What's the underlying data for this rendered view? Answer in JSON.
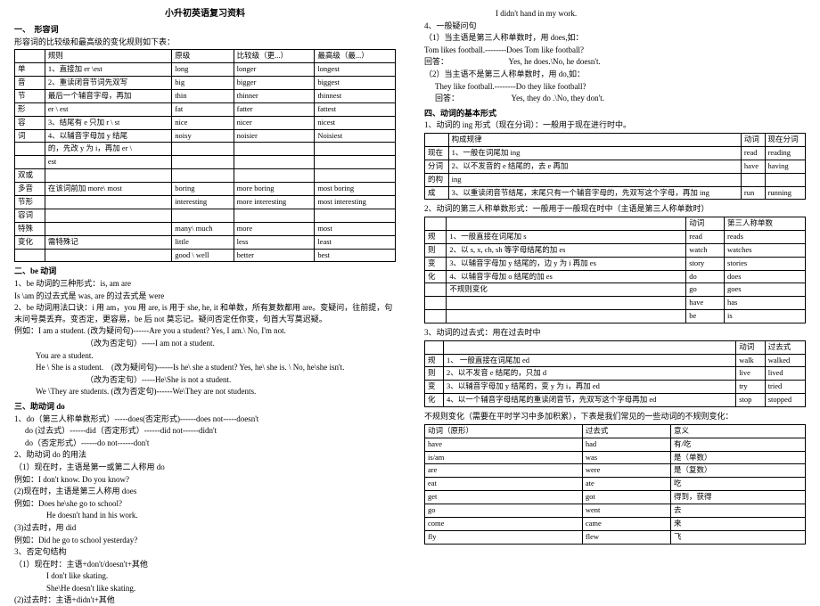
{
  "title": "小升初英语复习资料",
  "left": {
    "s1": {
      "h": "一、　形容词",
      "sub": "形容词的比较级和最高级的变化规则如下表：",
      "th": [
        "",
        "规则",
        "原级",
        "比较级（更...）",
        "最高级（最...）"
      ],
      "rows": [
        [
          "单",
          "1、直接加 er \\est",
          "long",
          "longer",
          "longest"
        ],
        [
          "音",
          "2、重读闭音节词先双写",
          "big",
          "bigger",
          "biggest"
        ],
        [
          "节",
          "最后一个辅音字母，再加",
          "thin",
          "thinner",
          "thinnest"
        ],
        [
          "形",
          "er \\ est",
          "fat",
          "fatter",
          "fattest"
        ],
        [
          "容",
          "3、结尾有 e 只加 r \\ st",
          "nice",
          "nicer",
          "nicest"
        ],
        [
          "词",
          "4、以辅音字母加 y 结尾",
          "noisy",
          "noisier",
          "Noisiest"
        ],
        [
          "",
          "的，先改 y 为 i，再加 er \\",
          "",
          "",
          ""
        ],
        [
          "",
          "est",
          "",
          "",
          ""
        ]
      ],
      "rows2": [
        [
          "双或",
          "",
          "",
          "",
          ""
        ],
        [
          "多音",
          "在该词前加 more\\ most",
          "boring",
          "more boring",
          "most boring"
        ],
        [
          "节形",
          "",
          "interesting",
          "more interesting",
          "most interesting"
        ],
        [
          "容词",
          "",
          "",
          "",
          ""
        ]
      ],
      "rows3": [
        [
          "特殊",
          "",
          "many\\ much",
          "more",
          "most"
        ],
        [
          "变化",
          "需特殊记",
          "little",
          "less",
          "least"
        ],
        [
          "",
          "",
          "good \\ well",
          "better",
          "best"
        ]
      ]
    },
    "s2": {
      "h": "二、be 动词",
      "l1": "1、be 动词的三种形式：is, am are",
      "l2": "Is \\am 的过去式是 was, are 的过去式是 were",
      "l3": "2、be 动词用法口诀：i 用 am，you 用 are, is 用于 she, he, it 和单数，所有复数都用 are。变疑问，往前提，句末问号莫丢弃。变否定，更容易，be 后 not 莫忘记。疑问否定任你变，句首大写莫迟疑。",
      "l4": "例如：I am a student. (改为疑问句)------Are you a student? Yes, I am.\\ No, I'm not.",
      "l5": "（改为否定句）-----I am not a student.",
      "l6": "You are a student.",
      "l7": "He \\ She is a student.　(改为疑问句)------Is he\\ she a student? Yes, he\\ she is. \\ No, he\\she isn't.",
      "l8": "（改为否定句）-----He\\She is not a student.",
      "l9": "We \\They are students. (改为否定句)------We\\They are not students."
    },
    "s3": {
      "h": "三、助动词 do",
      "l1": "1、do（第三人称单数形式）-----does(否定形式)------does not-----doesn't",
      "l2": "do (过去式）------did（否定形式）------did not------didn't",
      "l3": "do（否定形式）------do not------don't",
      "l4": "2、助动词 do 的用法",
      "l5": "（1）现在时，主语是第一或第二人称用 do",
      "l6": "例如：I don't know. Do you know?",
      "l7": "(2)现在时，主语是第三人称用 does",
      "l8": "例如：Does he\\she go to school?",
      "l9": "He doesn't hand in his work.",
      "l10": "(3)过去时，用 did",
      "l11": "例如：Did he go to school yesterday?",
      "l12": "3、否定句结构",
      "l13": "（1）现在时：主语+don't/doesn't+其他",
      "l14": "I don't like skating.",
      "l15": "She\\He doesn't like skating.",
      "l16": "(2)过去时：主语+didn't+其他"
    }
  },
  "right": {
    "top": {
      "l1": "I didn't hand in my work.",
      "l2": "4、一般疑问句",
      "l3": "（1）当主语是第三人称单数时，用 does,如：",
      "l4": "Tom likes football.--------Does Tom like football?",
      "l5": "回答：",
      "l5a": "Yes, he does.\\No, he doesn't.",
      "l6": "（2）当主语不是第三人称单数时，用 do,如：",
      "l7": "They like football.--------Do they like football?",
      "l8": "回答：",
      "l8a": "Yes, they do .\\No, they don't."
    },
    "s4": {
      "h": "四、动词的基本形式",
      "sub": "1、动词的 ing 形式（现在分词）：一般用于现在进行时中。",
      "th": [
        "",
        "构成规律",
        "动词",
        "现在分词"
      ],
      "rows": [
        [
          "现在",
          "1、一般在词尾加 ing",
          "read",
          "reading"
        ],
        [
          "分词",
          "2、以不发音的 e 结尾的，去 e 再加",
          "have",
          "having"
        ],
        [
          "的构",
          "ing",
          "",
          ""
        ],
        [
          "成",
          "3、以重读闭音节结尾，末尾只有一个辅音字母的，先双写这个字母，再加 ing",
          "run",
          "running"
        ]
      ]
    },
    "s5": {
      "sub": "2、动词的第三人称单数形式：一般用于一般现在时中（主语是第三人称单数时）",
      "th": [
        "",
        "",
        "动词",
        "第三人称单数"
      ],
      "rows": [
        [
          "规",
          "1、一般直接在词尾加 s",
          "read",
          "reads"
        ],
        [
          "则",
          "2、以 s, x, ch, sh 等字母结尾的加 es",
          "watch",
          "watches"
        ],
        [
          "变",
          "3、以辅音字母加 y 结尾的，边 y 为 i 再加 es",
          "story",
          "stories"
        ],
        [
          "化",
          "4、以辅音字母加 o 结尾的加 es",
          "do",
          "does"
        ]
      ],
      "rows2": [
        [
          "",
          "不规则变化",
          "go",
          "goes"
        ],
        [
          "",
          "",
          "have",
          "has"
        ],
        [
          "",
          "",
          "be",
          "is"
        ]
      ]
    },
    "s6": {
      "sub": "3、动词的过去式：用在过去时中",
      "th": [
        "",
        "",
        "动词",
        "过去式"
      ],
      "rows": [
        [
          "规",
          "1、 一般直接在词尾加 ed",
          "walk",
          "walked"
        ],
        [
          "则",
          "2、以不发音 e 结尾的，只加 d",
          "live",
          "lived"
        ],
        [
          "变",
          "3、以辅音字母加 y 结尾的，变 y 为 i，再加 ed",
          "try",
          "tried"
        ],
        [
          "化",
          "4、以一个辅音字母结尾的重读闭音节，先双写这个字母再加 ed",
          "stop",
          "stopped"
        ]
      ],
      "note": "不规则变化（需要在平时学习中多加积累），下表是我们常见的一些动词的不规则变化：",
      "th2": [
        "动词（原形）",
        "过去式",
        "意义"
      ],
      "rows2": [
        [
          "have",
          "had",
          "有/吃"
        ],
        [
          "is/am",
          "was",
          "是（单数）"
        ],
        [
          "are",
          "were",
          "是（复数）"
        ],
        [
          "eat",
          "ate",
          "吃"
        ],
        [
          "get",
          "got",
          "得到，获得"
        ],
        [
          "go",
          "went",
          "去"
        ],
        [
          "come",
          "came",
          "来"
        ],
        [
          "fly",
          "flew",
          "飞"
        ]
      ]
    }
  }
}
